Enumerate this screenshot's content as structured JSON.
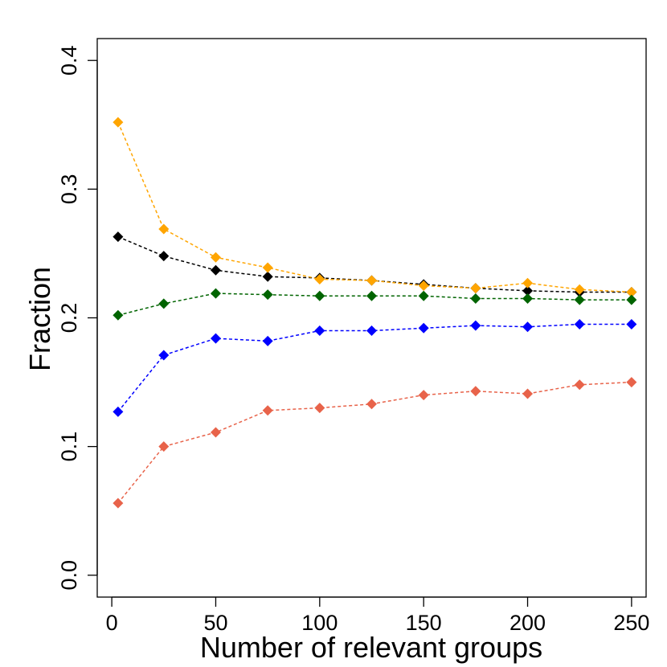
{
  "chart_data": {
    "type": "line",
    "title": "",
    "xlabel": "Number of relevant groups",
    "ylabel": "Fraction",
    "xlim": [
      -7,
      257
    ],
    "ylim": [
      -0.017,
      0.417
    ],
    "xticks": [
      0,
      50,
      100,
      150,
      200,
      250
    ],
    "yticks": [
      0.0,
      0.1,
      0.2,
      0.3,
      0.4
    ],
    "xtick_labels": [
      "0",
      "50",
      "100",
      "150",
      "200",
      "250"
    ],
    "ytick_labels": [
      "0.0",
      "0.1",
      "0.2",
      "0.3",
      "0.4"
    ],
    "grid": false,
    "legend": "none",
    "x": [
      3,
      25,
      50,
      75,
      100,
      125,
      150,
      175,
      200,
      225,
      250
    ],
    "series": [
      {
        "color": "#000000",
        "values": [
          0.263,
          0.248,
          0.237,
          0.232,
          0.231,
          0.229,
          0.226,
          0.223,
          0.221,
          0.22,
          0.22
        ]
      },
      {
        "color": "#FFA500",
        "values": [
          0.352,
          0.269,
          0.247,
          0.239,
          0.23,
          0.229,
          0.225,
          0.223,
          0.227,
          0.222,
          0.22
        ]
      },
      {
        "color": "#006400",
        "values": [
          0.202,
          0.211,
          0.219,
          0.218,
          0.217,
          0.217,
          0.217,
          0.215,
          0.215,
          0.214,
          0.214
        ]
      },
      {
        "color": "#0000FF",
        "values": [
          0.127,
          0.171,
          0.184,
          0.182,
          0.19,
          0.19,
          0.192,
          0.194,
          0.193,
          0.195,
          0.195
        ]
      },
      {
        "color": "#E8634A",
        "values": [
          0.056,
          0.1,
          0.111,
          0.128,
          0.13,
          0.133,
          0.14,
          0.143,
          0.141,
          0.148,
          0.15
        ]
      }
    ]
  }
}
